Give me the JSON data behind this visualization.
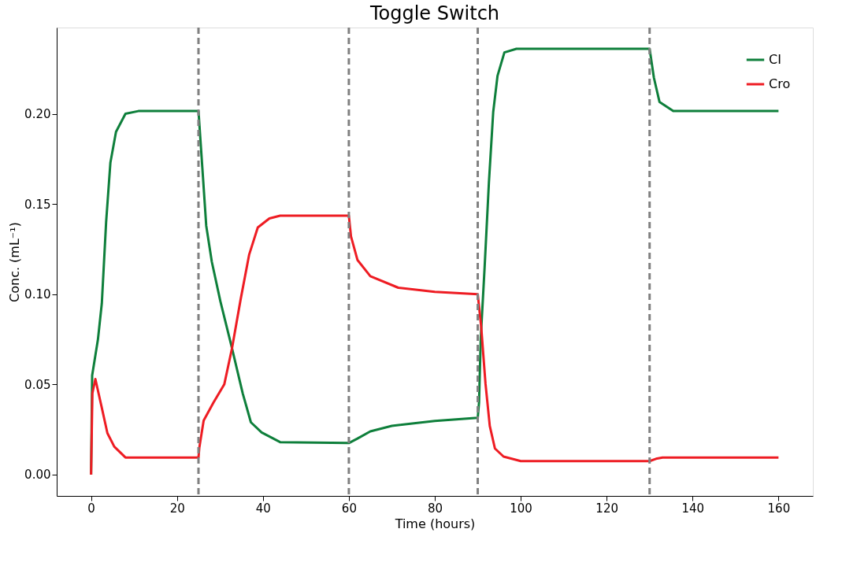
{
  "chart_data": {
    "type": "line",
    "title": "Toggle Switch",
    "xlabel": "Time (hours)",
    "ylabel": "Conc. (mL⁻¹)",
    "xlim": [
      -8,
      168
    ],
    "ylim": [
      -0.0118,
      0.2478
    ],
    "xticks": [
      0,
      20,
      40,
      60,
      80,
      100,
      120,
      140,
      160
    ],
    "yticks": [
      {
        "value": 0,
        "label": "0.00"
      },
      {
        "value": 0.05,
        "label": "0.05"
      },
      {
        "value": 0.1,
        "label": "0.10"
      },
      {
        "value": 0.15,
        "label": "0.15"
      },
      {
        "value": 0.2,
        "label": "0.20"
      }
    ],
    "grid": false,
    "legend": "top right",
    "marker": "none",
    "line_style": "solid",
    "ref_lines": [
      {
        "axis": "x",
        "value": 25,
        "color": "#808080",
        "line_style": "dashed"
      },
      {
        "axis": "x",
        "value": 60,
        "color": "#808080",
        "line_style": "dashed"
      },
      {
        "axis": "x",
        "value": 90,
        "color": "#808080",
        "line_style": "dashed"
      },
      {
        "axis": "x",
        "value": 130,
        "color": "#808080",
        "line_style": "dashed"
      }
    ],
    "series": [
      {
        "name": "CI",
        "color": "#0e7f3b",
        "x": [
          0,
          0.25,
          1.6,
          2.5,
          3.5,
          4.5,
          5.8,
          8,
          11,
          25,
          25.9,
          26.8,
          28.1,
          30.1,
          32.7,
          35.3,
          37.2,
          39.7,
          44,
          60,
          62,
          65,
          70,
          80,
          90,
          90.3,
          90.7,
          91.6,
          92.6,
          93.6,
          94.6,
          96.2,
          99,
          130,
          131,
          132.3,
          135.5,
          160
        ],
        "values": [
          0,
          0.055,
          0.075,
          0.095,
          0.14,
          0.173,
          0.19,
          0.2,
          0.2015,
          0.2015,
          0.17,
          0.138,
          0.118,
          0.096,
          0.071,
          0.045,
          0.029,
          0.0234,
          0.018,
          0.0175,
          0.02,
          0.024,
          0.027,
          0.0298,
          0.0315,
          0.04,
          0.0757,
          0.115,
          0.162,
          0.201,
          0.221,
          0.234,
          0.236,
          0.236,
          0.22,
          0.2066,
          0.2015,
          0.2015
        ]
      },
      {
        "name": "Cro",
        "color": "#ee1c23",
        "x": [
          0,
          0.3,
          1,
          2.5,
          3.8,
          5.4,
          8,
          25,
          25.2,
          26.2,
          28.5,
          31,
          32.8,
          34.8,
          36.8,
          38.8,
          41.5,
          44,
          60,
          60.5,
          62,
          65,
          71.5,
          80,
          90,
          90.8,
          91.8,
          92.8,
          94,
          96,
          100,
          130,
          131.5,
          133,
          160
        ],
        "values": [
          0,
          0.045,
          0.053,
          0.037,
          0.023,
          0.0155,
          0.0095,
          0.0095,
          0.015,
          0.03,
          0.04,
          0.05,
          0.07,
          0.097,
          0.122,
          0.137,
          0.142,
          0.1435,
          0.1435,
          0.132,
          0.119,
          0.11,
          0.1036,
          0.1013,
          0.1,
          0.082,
          0.0505,
          0.027,
          0.0145,
          0.01,
          0.0075,
          0.0075,
          0.0088,
          0.0095,
          0.0095
        ]
      }
    ]
  }
}
